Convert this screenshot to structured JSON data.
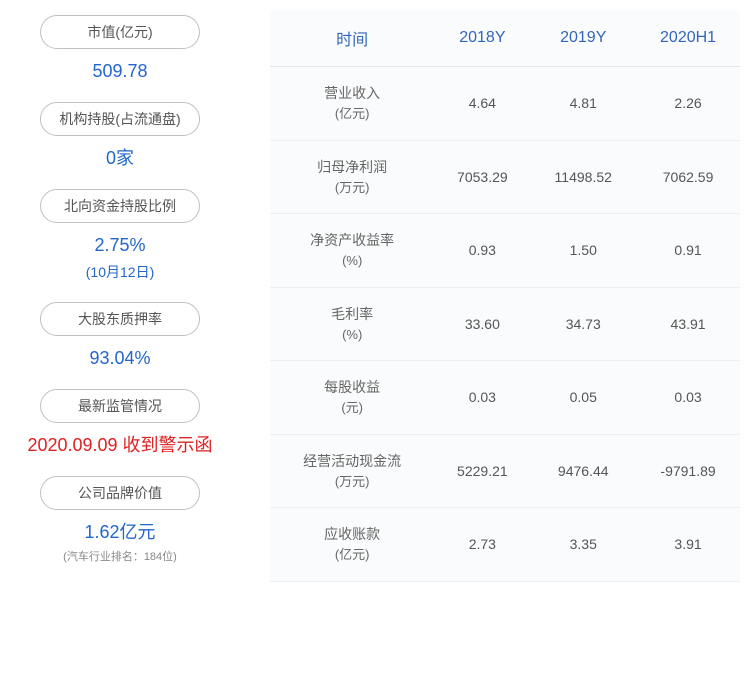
{
  "left_panel": {
    "items": [
      {
        "label": "市值(亿元)",
        "value": "509.78",
        "sub": "",
        "color": "blue"
      },
      {
        "label": "机构持股(占流通盘)",
        "value": "0家",
        "sub": "",
        "color": "blue"
      },
      {
        "label": "北向资金持股比例",
        "value": "2.75%",
        "sub": "(10月12日)",
        "color": "blue"
      },
      {
        "label": "大股东质押率",
        "value": "93.04%",
        "sub": "",
        "color": "blue"
      },
      {
        "label": "最新监管情况",
        "value": "2020.09.09 收到警示函",
        "sub": "",
        "color": "red"
      },
      {
        "label": "公司品牌价值",
        "value": "1.62亿元",
        "sub": "",
        "color": "blue",
        "note": "(汽车行业排名：184位)"
      }
    ]
  },
  "table": {
    "columns": [
      "时间",
      "2018Y",
      "2019Y",
      "2020H1"
    ],
    "rows": [
      {
        "name": "营业收入",
        "unit": "(亿元)",
        "vals": [
          "4.64",
          "4.81",
          "2.26"
        ]
      },
      {
        "name": "归母净利润",
        "unit": "(万元)",
        "vals": [
          "7053.29",
          "11498.52",
          "7062.59"
        ]
      },
      {
        "name": "净资产收益率",
        "unit": "(%)",
        "vals": [
          "0.93",
          "1.50",
          "0.91"
        ]
      },
      {
        "name": "毛利率",
        "unit": "(%)",
        "vals": [
          "33.60",
          "34.73",
          "43.91"
        ]
      },
      {
        "name": "每股收益",
        "unit": "(元)",
        "vals": [
          "0.03",
          "0.05",
          "0.03"
        ]
      },
      {
        "name": "经营活动现金流",
        "unit": "(万元)",
        "vals": [
          "5229.21",
          "9476.44",
          "-9791.89"
        ]
      },
      {
        "name": "应收账款",
        "unit": "(亿元)",
        "vals": [
          "2.73",
          "3.35",
          "3.91"
        ]
      }
    ]
  },
  "styles": {
    "header_color": "#3366bb",
    "value_blue": "#2266cc",
    "value_red": "#dd2222",
    "cell_text": "#555555",
    "border": "#e5e5e5",
    "bg": "#fafbfc"
  }
}
